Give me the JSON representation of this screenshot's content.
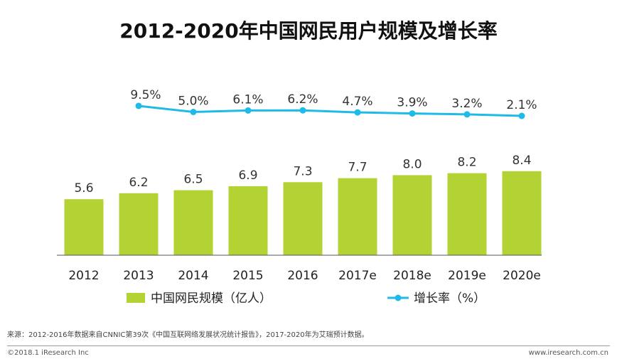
{
  "chart_data": {
    "type": "bar+line",
    "title": "2012-2020年中国网民用户规模及增长率",
    "categories": [
      "2012",
      "2013",
      "2014",
      "2015",
      "2016",
      "2017e",
      "2018e",
      "2019e",
      "2020e"
    ],
    "series": [
      {
        "name": "中国网民规模（亿人）",
        "type": "bar",
        "color": "#b3d334",
        "values": [
          5.6,
          6.2,
          6.5,
          6.9,
          7.3,
          7.7,
          8.0,
          8.2,
          8.4
        ],
        "labels": [
          "5.6",
          "6.2",
          "6.5",
          "6.9",
          "7.3",
          "7.7",
          "8.0",
          "8.2",
          "8.4"
        ]
      },
      {
        "name": "增长率（%）",
        "type": "line",
        "color": "#1fbbe8",
        "values": [
          null,
          9.5,
          5.0,
          6.1,
          6.2,
          4.7,
          3.9,
          3.2,
          2.1
        ],
        "labels": [
          "",
          "9.5%",
          "5.0%",
          "6.1%",
          "6.2%",
          "4.7%",
          "3.9%",
          "3.2%",
          "2.1%"
        ]
      }
    ],
    "legend": "bottom",
    "grid": false
  },
  "source": "来源：2012-2016年数据来自CNNIC第39次《中国互联网络发展状况统计报告》，2017-2020年为艾瑞预计数据。",
  "footer": {
    "copyright": "©2018.1 iResearch Inc",
    "website": "www.iresearch.com.cn"
  }
}
